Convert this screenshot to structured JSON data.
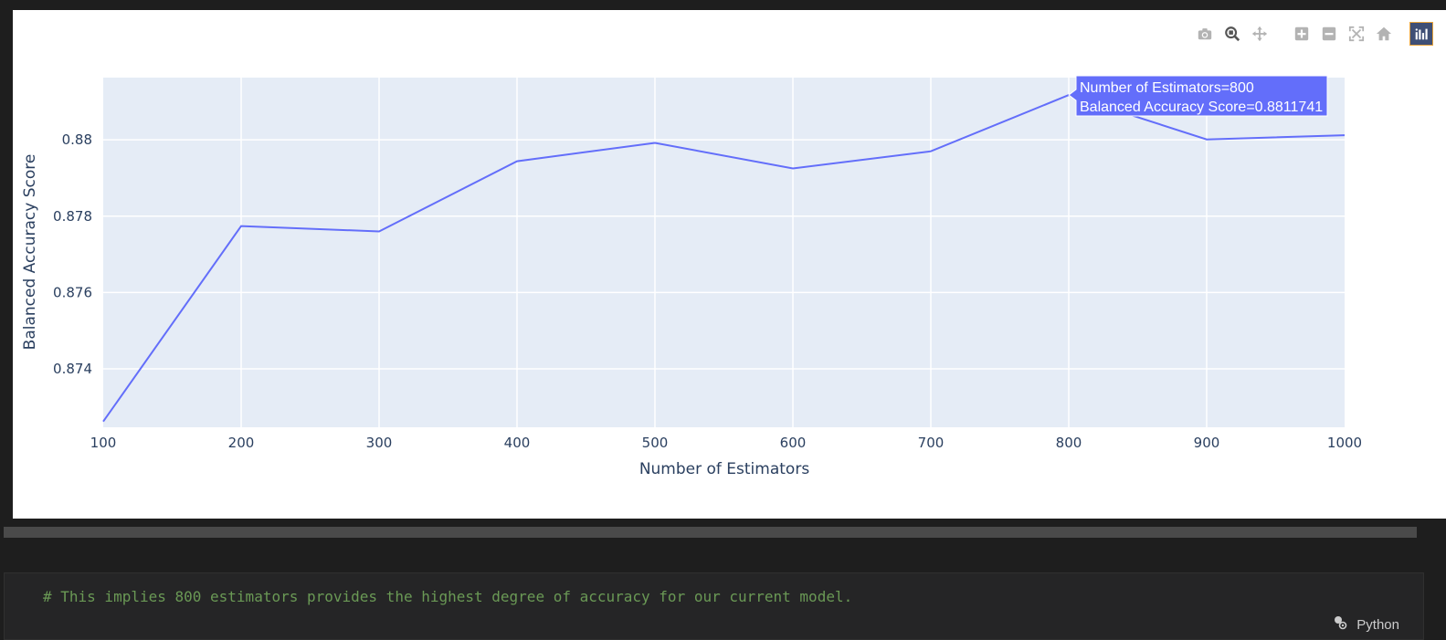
{
  "chart_data": {
    "type": "line",
    "xlabel": "Number of Estimators",
    "ylabel": "Balanced Accuracy Score",
    "x": [
      100,
      200,
      300,
      400,
      500,
      600,
      700,
      800,
      900,
      1000
    ],
    "y": [
      0.87262,
      0.87774,
      0.8776,
      0.87944,
      0.87992,
      0.87925,
      0.8797,
      0.8811741,
      0.88001,
      0.88012
    ],
    "xlim": [
      100,
      1000
    ],
    "ylim": [
      0.87247,
      0.88163
    ],
    "xticks": [
      "100",
      "200",
      "300",
      "400",
      "500",
      "600",
      "700",
      "800",
      "900",
      "1000"
    ],
    "yticks": [
      {
        "value": 0.874,
        "label": "0.874"
      },
      {
        "value": 0.876,
        "label": "0.876"
      },
      {
        "value": 0.878,
        "label": "0.878"
      },
      {
        "value": 0.88,
        "label": "0.88"
      }
    ],
    "grid": true,
    "line_color": "#636efa",
    "plot_bg": "#e5ecf6",
    "hover": {
      "index": 7,
      "line1": "Number of Estimators=800",
      "line2": "Balanced Accuracy Score=0.8811741"
    }
  },
  "modebar": {
    "icons": [
      "camera-icon",
      "zoom-icon",
      "pan-icon",
      "zoom-in-icon",
      "zoom-out-icon",
      "autoscale-icon",
      "reset-axes-icon",
      "plotly-logo-icon"
    ]
  },
  "code_cell": {
    "comment": "# This implies 800 estimators provides the highest degree of accuracy for our current model.",
    "language": "Python"
  }
}
